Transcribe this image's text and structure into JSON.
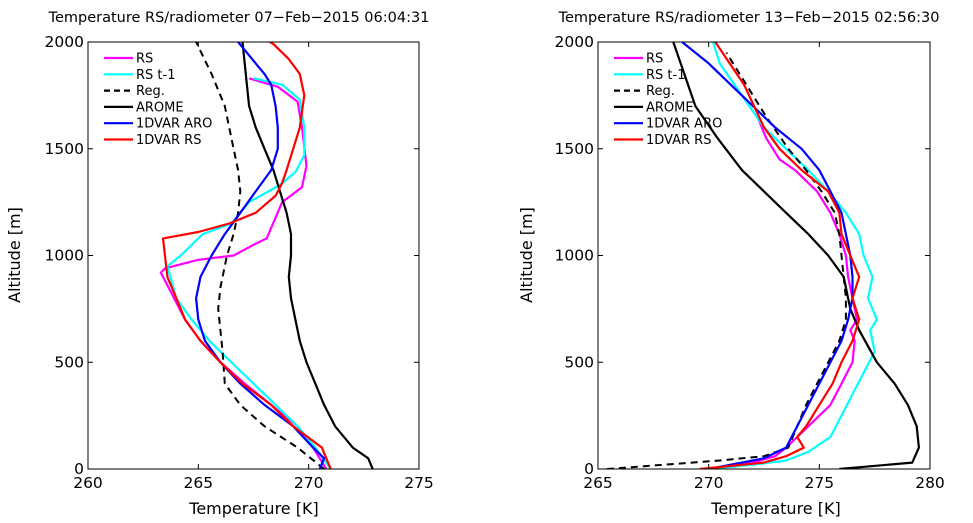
{
  "series_colors": {
    "RS": "#ff00ff",
    "RS t-1": "#00ffff",
    "Reg.": "#000000",
    "AROME": "#000000",
    "1DVAR ARO": "#0000ff",
    "1DVAR RS": "#ff0000"
  },
  "chart_data": [
    {
      "type": "line",
      "title": "Temperature RS/radiometer 07−Feb−2015 06:04:31",
      "xlabel": "Temperature [K]",
      "ylabel": "Altitude [m]",
      "xlim": [
        260,
        275
      ],
      "ylim": [
        0,
        2000
      ],
      "xticks": [
        260,
        265,
        270,
        275
      ],
      "yticks": [
        0,
        500,
        1000,
        1500,
        2000
      ],
      "grid": false,
      "legend": "top-left",
      "series": [
        {
          "name": "RS",
          "style": "solid",
          "color": "#ff00ff",
          "x": [
            270.8,
            270.2,
            269.5,
            268.3,
            267.1,
            266.0,
            265.1,
            264.4,
            263.9,
            263.3,
            263.5,
            265.0,
            266.6,
            267.5,
            268.1,
            268.8,
            269.7,
            269.9,
            269.7,
            269.5,
            268.6,
            267.3
          ],
          "y": [
            0,
            100,
            200,
            300,
            400,
            500,
            600,
            700,
            800,
            920,
            940,
            980,
            1000,
            1050,
            1080,
            1250,
            1320,
            1420,
            1600,
            1720,
            1790,
            1830
          ]
        },
        {
          "name": "RS t-1",
          "style": "solid",
          "color": "#00ffff",
          "x": [
            271.0,
            270.3,
            269.5,
            268.5,
            267.5,
            266.5,
            265.5,
            264.7,
            264.0,
            263.6,
            264.2,
            265.2,
            266.5,
            267.3,
            268.7,
            269.4,
            269.8,
            269.8,
            269.6,
            268.8,
            267.5
          ],
          "y": [
            0,
            100,
            200,
            300,
            400,
            500,
            600,
            700,
            800,
            950,
            1000,
            1100,
            1150,
            1250,
            1330,
            1390,
            1470,
            1600,
            1730,
            1800,
            1830
          ]
        },
        {
          "name": "Reg.",
          "style": "dashed",
          "color": "#000000",
          "x": [
            270.7,
            269.5,
            268.0,
            266.9,
            266.2,
            266.1,
            266.0,
            265.9,
            266.0,
            266.3,
            266.6,
            266.8,
            266.9,
            266.8,
            266.6,
            266.2,
            265.6,
            264.9
          ],
          "y": [
            0,
            100,
            200,
            300,
            400,
            550,
            650,
            750,
            850,
            1000,
            1100,
            1200,
            1300,
            1400,
            1500,
            1700,
            1850,
            2000
          ]
        },
        {
          "name": "AROME",
          "style": "solid",
          "color": "#000000",
          "x": [
            272.9,
            272.7,
            272.0,
            271.2,
            270.7,
            270.3,
            269.9,
            269.6,
            269.4,
            269.2,
            269.1,
            269.2,
            269.2,
            269.0,
            268.7,
            268.4,
            268.0,
            267.6,
            267.3,
            267.0
          ],
          "y": [
            0,
            50,
            100,
            200,
            300,
            400,
            500,
            600,
            700,
            800,
            900,
            1000,
            1100,
            1200,
            1300,
            1400,
            1500,
            1600,
            1700,
            2000
          ]
        },
        {
          "name": "1DVAR ARO",
          "style": "solid",
          "color": "#0000ff",
          "x": [
            270.5,
            270.7,
            270.2,
            269.3,
            268.0,
            266.9,
            266.0,
            265.3,
            265.0,
            264.9,
            265.1,
            265.6,
            266.2,
            266.9,
            267.6,
            268.3,
            268.6,
            268.6,
            268.5,
            268.3,
            268.0,
            267.6,
            267.2,
            266.8
          ],
          "y": [
            0,
            50,
            100,
            200,
            300,
            400,
            500,
            600,
            700,
            800,
            900,
            1000,
            1100,
            1200,
            1300,
            1400,
            1500,
            1600,
            1700,
            1800,
            1850,
            1900,
            1950,
            2000
          ]
        },
        {
          "name": "1DVAR RS",
          "style": "solid",
          "color": "#ff0000",
          "x": [
            271.0,
            270.6,
            269.3,
            268.3,
            267.0,
            266.0,
            265.1,
            264.4,
            264.0,
            263.6,
            263.4,
            265.0,
            266.4,
            267.6,
            268.5,
            268.8,
            269.0,
            269.3,
            269.6,
            269.8,
            269.6,
            269.1,
            268.4,
            267.8
          ],
          "y": [
            0,
            100,
            200,
            300,
            400,
            500,
            600,
            700,
            800,
            900,
            1080,
            1110,
            1150,
            1200,
            1280,
            1340,
            1400,
            1500,
            1600,
            1750,
            1850,
            1920,
            1990,
            2030
          ]
        }
      ]
    },
    {
      "type": "line",
      "title": "Temperature RS/radiometer 13−Feb−2015 02:56:30",
      "xlabel": "Temperature [K]",
      "ylabel": "Altitude [m]",
      "xlim": [
        265,
        280
      ],
      "ylim": [
        0,
        2000
      ],
      "xticks": [
        265,
        270,
        275,
        280
      ],
      "yticks": [
        0,
        500,
        1000,
        1500,
        2000
      ],
      "grid": false,
      "legend": "top-left",
      "series": [
        {
          "name": "RS",
          "style": "solid",
          "color": "#ff00ff",
          "x": [
            270.0,
            272.0,
            273.0,
            273.5,
            274.0,
            274.5,
            275.5,
            276.0,
            276.5,
            276.6,
            276.4,
            276.7,
            276.5,
            276.3,
            276.2,
            275.9,
            275.5,
            274.9,
            273.9,
            273.2,
            272.9,
            272.6,
            272.2
          ],
          "y": [
            0,
            30,
            60,
            100,
            150,
            200,
            300,
            400,
            500,
            600,
            650,
            700,
            800,
            900,
            1000,
            1100,
            1200,
            1300,
            1400,
            1450,
            1500,
            1550,
            1650
          ]
        },
        {
          "name": "RS t-1",
          "style": "solid",
          "color": "#00ffff",
          "x": [
            270.0,
            272.0,
            273.5,
            274.5,
            275.5,
            276.0,
            276.5,
            277.0,
            277.5,
            277.3,
            277.6,
            277.2,
            277.4,
            277.0,
            276.8,
            276.2,
            275.4,
            274.5,
            273.5,
            272.5,
            271.5,
            270.5,
            270.2
          ],
          "y": [
            0,
            20,
            40,
            80,
            150,
            250,
            350,
            450,
            550,
            650,
            700,
            800,
            900,
            1000,
            1100,
            1200,
            1300,
            1400,
            1500,
            1600,
            1750,
            1900,
            2000
          ]
        },
        {
          "name": "Reg.",
          "style": "dashed",
          "color": "#000000",
          "x": [
            265.4,
            268.0,
            270.5,
            272.5,
            273.6,
            274.0,
            274.4,
            274.9,
            275.4,
            275.9,
            276.2,
            276.2,
            276.1,
            276.0,
            275.9,
            275.7,
            275.1,
            274.4,
            273.6,
            272.6,
            271.7,
            270.8
          ],
          "y": [
            0,
            20,
            40,
            60,
            100,
            200,
            300,
            400,
            500,
            600,
            700,
            800,
            900,
            1000,
            1100,
            1200,
            1300,
            1400,
            1500,
            1650,
            1800,
            1950
          ]
        },
        {
          "name": "AROME",
          "style": "solid",
          "color": "#000000",
          "x": [
            275.9,
            279.2,
            279.5,
            279.4,
            279.0,
            278.4,
            277.6,
            276.8,
            276.4,
            276.1,
            275.4,
            274.5,
            273.5,
            272.5,
            271.5,
            270.4,
            269.4,
            268.4
          ],
          "y": [
            0,
            30,
            100,
            200,
            300,
            400,
            500,
            650,
            750,
            900,
            1000,
            1100,
            1200,
            1300,
            1400,
            1550,
            1700,
            2000
          ]
        },
        {
          "name": "1DVAR ARO",
          "style": "solid",
          "color": "#0000ff",
          "x": [
            270.0,
            272.5,
            273.5,
            274.0,
            274.5,
            275.0,
            275.5,
            276.0,
            276.3,
            276.5,
            276.5,
            276.4,
            276.2,
            276.0,
            275.5,
            275.0,
            274.2,
            273.0,
            271.5,
            270.0,
            268.8
          ],
          "y": [
            0,
            50,
            100,
            200,
            300,
            400,
            500,
            600,
            700,
            800,
            900,
            1000,
            1100,
            1200,
            1300,
            1400,
            1500,
            1600,
            1750,
            1900,
            2000
          ]
        },
        {
          "name": "1DVAR RS",
          "style": "solid",
          "color": "#ff0000",
          "x": [
            269.6,
            272.5,
            273.5,
            274.3,
            274.0,
            274.4,
            275.0,
            275.6,
            276.0,
            276.5,
            276.8,
            276.5,
            276.8,
            276.4,
            276.0,
            275.9,
            275.4,
            274.2,
            273.2,
            272.5,
            271.6,
            270.3
          ],
          "y": [
            0,
            30,
            60,
            100,
            150,
            200,
            300,
            400,
            500,
            600,
            700,
            800,
            900,
            1000,
            1100,
            1200,
            1300,
            1400,
            1500,
            1600,
            1800,
            2000
          ]
        }
      ]
    }
  ]
}
